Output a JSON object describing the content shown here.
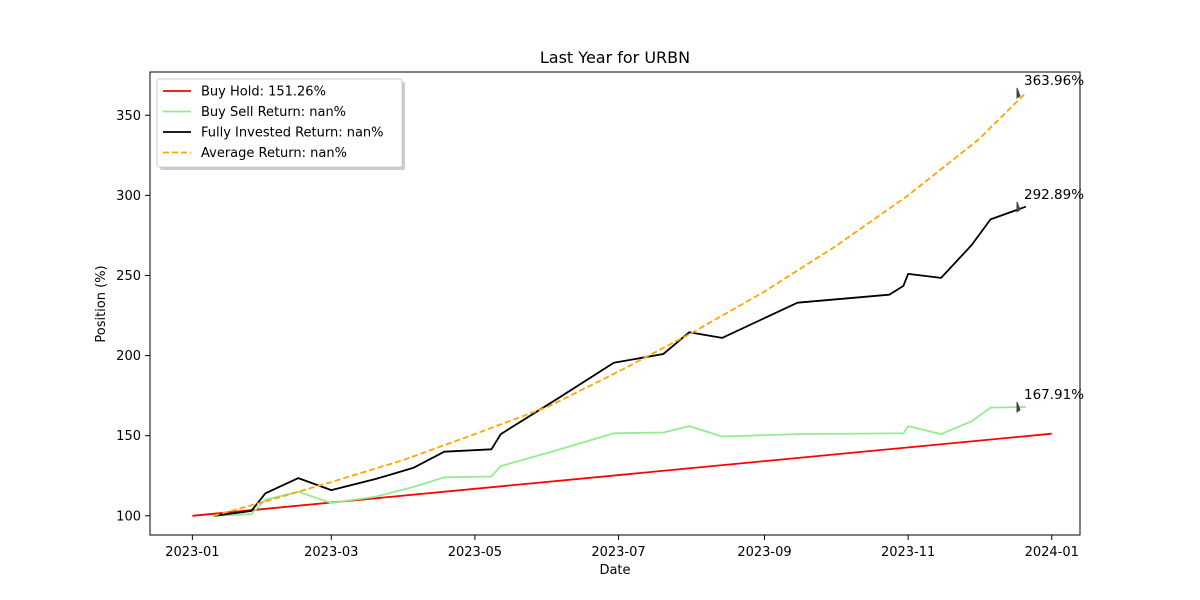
{
  "chart_data": {
    "type": "line",
    "title": "Last Year for URBN",
    "xlabel": "Date",
    "ylabel": "Position (%)",
    "xlim": [
      "2022-12-14",
      "2024-01-13"
    ],
    "ylim": [
      88,
      377
    ],
    "x_ticks": [
      "2023-01",
      "2023-03",
      "2023-05",
      "2023-07",
      "2023-09",
      "2023-11",
      "2024-01"
    ],
    "y_ticks": [
      100,
      150,
      200,
      250,
      300,
      350
    ],
    "grid": false,
    "legend": "top-left",
    "series": [
      {
        "name": "Buy Hold: 151.26%",
        "color": "#ff0000",
        "style": "solid",
        "points": [
          [
            "2023-01-01",
            100
          ],
          [
            "2024-01-01",
            151.26
          ]
        ]
      },
      {
        "name": "Buy Sell Return: nan%",
        "color": "#90ee90",
        "style": "solid",
        "points": [
          [
            "2023-01-10",
            100
          ],
          [
            "2023-01-26",
            101
          ],
          [
            "2023-02-01",
            110
          ],
          [
            "2023-02-15",
            115
          ],
          [
            "2023-03-01",
            108
          ],
          [
            "2023-03-20",
            112
          ],
          [
            "2023-04-05",
            118
          ],
          [
            "2023-04-18",
            124
          ],
          [
            "2023-05-08",
            124.5
          ],
          [
            "2023-05-12",
            131
          ],
          [
            "2023-06-05",
            141
          ],
          [
            "2023-06-29",
            151.5
          ],
          [
            "2023-07-20",
            152
          ],
          [
            "2023-07-31",
            156
          ],
          [
            "2023-08-14",
            149.5
          ],
          [
            "2023-09-15",
            151
          ],
          [
            "2023-10-30",
            151.5
          ],
          [
            "2023-11-01",
            156
          ],
          [
            "2023-11-15",
            151
          ],
          [
            "2023-11-28",
            159
          ],
          [
            "2023-12-06",
            167.5
          ],
          [
            "2023-12-21",
            167.9
          ]
        ]
      },
      {
        "name": "Fully Invested Return: nan%",
        "color": "#000000",
        "style": "solid",
        "points": [
          [
            "2023-01-10",
            100
          ],
          [
            "2023-01-26",
            103
          ],
          [
            "2023-02-01",
            114
          ],
          [
            "2023-02-15",
            123.5
          ],
          [
            "2023-03-01",
            116
          ],
          [
            "2023-03-20",
            123
          ],
          [
            "2023-04-05",
            130
          ],
          [
            "2023-04-18",
            140
          ],
          [
            "2023-05-08",
            141.5
          ],
          [
            "2023-05-12",
            151
          ],
          [
            "2023-06-05",
            173
          ],
          [
            "2023-06-29",
            195.5
          ],
          [
            "2023-07-20",
            201
          ],
          [
            "2023-07-31",
            214.5
          ],
          [
            "2023-08-14",
            211
          ],
          [
            "2023-09-15",
            233
          ],
          [
            "2023-10-24",
            238
          ],
          [
            "2023-10-30",
            243.5
          ],
          [
            "2023-11-01",
            251
          ],
          [
            "2023-11-15",
            248.5
          ],
          [
            "2023-11-28",
            269
          ],
          [
            "2023-12-06",
            285
          ],
          [
            "2023-12-21",
            292.9
          ]
        ]
      },
      {
        "name": "Average Return: nan%",
        "color": "#ffa500",
        "style": "dashed",
        "points": [
          [
            "2023-01-10",
            100
          ],
          [
            "2023-02-01",
            109
          ],
          [
            "2023-03-01",
            121
          ],
          [
            "2023-04-01",
            135
          ],
          [
            "2023-05-01",
            151
          ],
          [
            "2023-06-01",
            168
          ],
          [
            "2023-07-01",
            190
          ],
          [
            "2023-08-01",
            214
          ],
          [
            "2023-09-01",
            240
          ],
          [
            "2023-10-01",
            268
          ],
          [
            "2023-11-01",
            300
          ],
          [
            "2023-12-01",
            335
          ],
          [
            "2023-12-21",
            364
          ]
        ]
      }
    ],
    "annotations": [
      {
        "text": "363.96%",
        "value": 363.96
      },
      {
        "text": "292.89%",
        "value": 292.89
      },
      {
        "text": "167.91%",
        "value": 167.91
      }
    ]
  }
}
